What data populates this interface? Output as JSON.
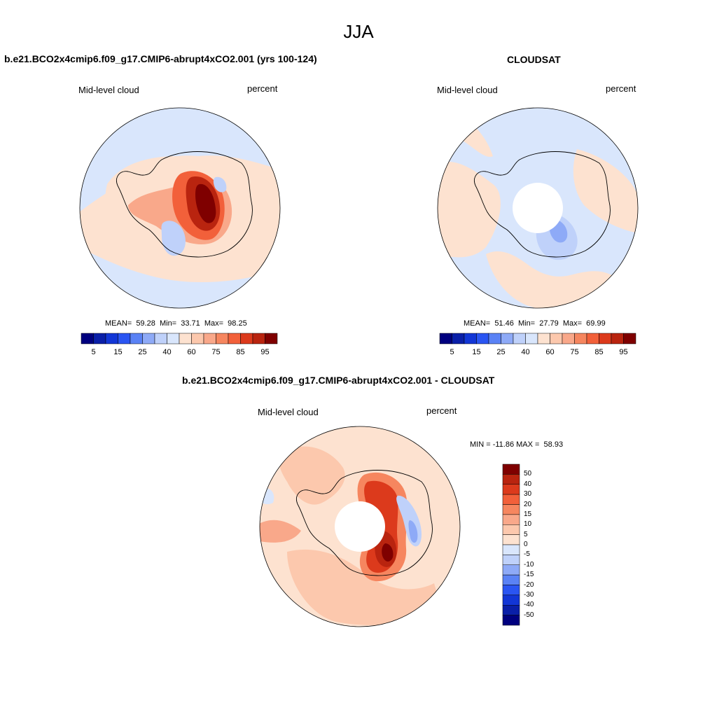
{
  "main_title": "JJA",
  "colors": {
    "blue": [
      "#00007f",
      "#0a1fa8",
      "#1236d6",
      "#2a55f2",
      "#5a82f5",
      "#8eaaf7",
      "#bfd1fa",
      "#d9e6fc"
    ],
    "red": [
      "#fde2d0",
      "#fcc8ad",
      "#f9a88a",
      "#f6865f",
      "#f2603a",
      "#dc3a1c",
      "#b9240f",
      "#7f0000"
    ],
    "ice": "#ffffff",
    "coast": "#000000"
  },
  "panels": [
    {
      "title": "b.e21.BCO2x4cmip6.f09_g17.CMIP6-abrupt4xCO2.001 (yrs 100-124)",
      "left_label": "Mid-level cloud",
      "right_label": "percent",
      "stats": "MEAN=  59.28  Min=  33.71  Max=  98.25",
      "colorbar": {
        "levels": [
          "5",
          "15",
          "25",
          "40",
          "60",
          "75",
          "85",
          "95"
        ]
      }
    },
    {
      "title": "CLOUDSAT",
      "left_label": "Mid-level cloud",
      "right_label": "percent",
      "stats": "MEAN=  51.46  Min=  27.79  Max=  69.99",
      "colorbar": {
        "levels": [
          "5",
          "15",
          "25",
          "40",
          "60",
          "75",
          "85",
          "95"
        ]
      }
    },
    {
      "title": "b.e21.BCO2x4cmip6.f09_g17.CMIP6-abrupt4xCO2.001 - CLOUDSAT",
      "left_label": "Mid-level cloud",
      "right_label": "percent",
      "stats": "MIN = -11.86 MAX =  58.93",
      "colorbar": {
        "levels": [
          "50",
          "40",
          "30",
          "20",
          "15",
          "10",
          "5",
          "0",
          "-5",
          "-10",
          "-15",
          "-20",
          "-30",
          "-40",
          "-50"
        ]
      }
    }
  ]
}
